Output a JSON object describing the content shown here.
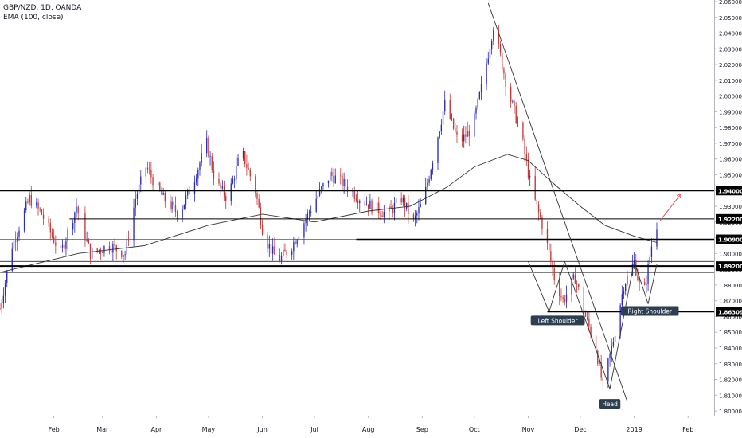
{
  "legend": {
    "symbol": "GBP/NZD, 1D, OANDA",
    "indicator": "EMA (100, close)"
  },
  "colors": {
    "up": "#2a2ab8",
    "down": "#c43838",
    "ema": "#333333",
    "level": "#000000",
    "blue_level": "#4a6cf0",
    "arrow": "#e05050",
    "badge_bg": "#000000",
    "badge_text": "#ffffff",
    "label_bg": "#2c3e50"
  },
  "chart_data": {
    "type": "candlestick",
    "y_ticks": [
      "1.80000",
      "1.81000",
      "1.82000",
      "1.83000",
      "1.84000",
      "1.85000",
      "1.86000",
      "1.87000",
      "1.88000",
      "1.89000",
      "1.90000",
      "1.91000",
      "1.92000",
      "1.93000",
      "1.94000",
      "1.95000",
      "1.96000",
      "1.97000",
      "1.98000",
      "1.99000",
      "2.00000",
      "2.01000",
      "2.02000",
      "2.03000",
      "2.04000",
      "2.05000",
      "2.06000"
    ],
    "ylim": [
      1.797,
      2.061
    ],
    "x_labels": [
      "Feb",
      "Mar",
      "Apr",
      "May",
      "Jun",
      "Jul",
      "Aug",
      "Sep",
      "Oct",
      "Nov",
      "Dec",
      "2019",
      "Feb"
    ],
    "x_label_dates": [
      "2018-02-01",
      "2018-03-01",
      "2018-04-01",
      "2018-05-01",
      "2018-06-01",
      "2018-07-01",
      "2018-08-01",
      "2018-09-01",
      "2018-10-01",
      "2018-11-01",
      "2018-12-01",
      "2019-01-01",
      "2019-02-01"
    ],
    "x_start": "2018-01-01",
    "x_end": "2019-02-16",
    "price_path": [
      [
        "2018-01-01",
        1.865
      ],
      [
        "2018-01-08",
        1.905
      ],
      [
        "2018-01-18",
        1.935
      ],
      [
        "2018-01-25",
        1.925
      ],
      [
        "2018-02-05",
        1.9
      ],
      [
        "2018-02-14",
        1.93
      ],
      [
        "2018-02-22",
        1.9
      ],
      [
        "2018-03-05",
        1.905
      ],
      [
        "2018-03-14",
        1.9
      ],
      [
        "2018-03-20",
        1.935
      ],
      [
        "2018-03-26",
        1.955
      ],
      [
        "2018-04-05",
        1.935
      ],
      [
        "2018-04-14",
        1.925
      ],
      [
        "2018-04-22",
        1.945
      ],
      [
        "2018-04-30",
        1.97
      ],
      [
        "2018-05-05",
        1.945
      ],
      [
        "2018-05-12",
        1.935
      ],
      [
        "2018-05-20",
        1.965
      ],
      [
        "2018-05-28",
        1.94
      ],
      [
        "2018-06-02",
        1.91
      ],
      [
        "2018-06-10",
        1.895
      ],
      [
        "2018-06-18",
        1.905
      ],
      [
        "2018-06-25",
        1.92
      ],
      [
        "2018-07-02",
        1.935
      ],
      [
        "2018-07-10",
        1.95
      ],
      [
        "2018-07-17",
        1.945
      ],
      [
        "2018-07-27",
        1.935
      ],
      [
        "2018-08-03",
        1.93
      ],
      [
        "2018-08-12",
        1.925
      ],
      [
        "2018-08-20",
        1.935
      ],
      [
        "2018-08-27",
        1.92
      ],
      [
        "2018-09-02",
        1.935
      ],
      [
        "2018-09-08",
        1.965
      ],
      [
        "2018-09-14",
        1.995
      ],
      [
        "2018-09-22",
        1.97
      ],
      [
        "2018-09-30",
        1.98
      ],
      [
        "2018-10-07",
        2.015
      ],
      [
        "2018-10-12",
        2.045
      ],
      [
        "2018-10-20",
        2.005
      ],
      [
        "2018-10-28",
        1.975
      ],
      [
        "2018-11-03",
        1.94
      ],
      [
        "2018-11-10",
        1.915
      ],
      [
        "2018-11-16",
        1.885
      ],
      [
        "2018-11-21",
        1.87
      ],
      [
        "2018-11-28",
        1.885
      ],
      [
        "2018-12-04",
        1.86
      ],
      [
        "2018-12-10",
        1.84
      ],
      [
        "2018-12-14",
        1.815
      ],
      [
        "2018-12-20",
        1.845
      ],
      [
        "2018-12-26",
        1.88
      ],
      [
        "2019-01-01",
        1.895
      ],
      [
        "2019-01-06",
        1.87
      ],
      [
        "2019-01-11",
        1.905
      ],
      [
        "2019-01-14",
        1.918
      ]
    ],
    "ema_path": [
      [
        "2018-01-01",
        1.888
      ],
      [
        "2018-02-15",
        1.9
      ],
      [
        "2018-03-25",
        1.905
      ],
      [
        "2018-05-01",
        1.918
      ],
      [
        "2018-06-01",
        1.925
      ],
      [
        "2018-07-01",
        1.92
      ],
      [
        "2018-08-01",
        1.927
      ],
      [
        "2018-08-25",
        1.93
      ],
      [
        "2018-09-15",
        1.942
      ],
      [
        "2018-10-01",
        1.955
      ],
      [
        "2018-10-20",
        1.963
      ],
      [
        "2018-11-01",
        1.959
      ],
      [
        "2018-11-15",
        1.945
      ],
      [
        "2018-12-01",
        1.93
      ],
      [
        "2018-12-15",
        1.918
      ],
      [
        "2019-01-01",
        1.911
      ],
      [
        "2019-01-14",
        1.907
      ]
    ],
    "levels": [
      {
        "price": 1.94,
        "label": "1.94000",
        "from": "2018-01-01",
        "width": 2
      },
      {
        "price": 1.922,
        "label": "1.92200",
        "from": "2018-02-10",
        "width": 1
      },
      {
        "price": 1.909,
        "label": "1.90900",
        "from": "2018-07-25",
        "width": 1.5
      },
      {
        "price": 1.892,
        "label": "1.89200",
        "from": "2018-01-01",
        "width": 2
      },
      {
        "price": 1.863,
        "label": "1.86309",
        "from": "2018-11-12",
        "width": 1.5
      }
    ],
    "thin_lines": [
      {
        "price": 1.909,
        "from": "2018-01-01",
        "to": "2018-07-25",
        "color": "blue_level"
      },
      {
        "price": 1.895,
        "from": "2018-01-01",
        "to": "2019-02-16",
        "color": "level"
      },
      {
        "price": 1.888,
        "from": "2018-01-01",
        "to": "2019-02-16",
        "color": "level"
      }
    ],
    "trendlines": [
      [
        [
          "2018-10-09",
          2.059
        ],
        [
          "2018-12-28",
          1.806
        ]
      ],
      [
        [
          "2018-11-01",
          1.895
        ],
        [
          "2018-11-13",
          1.863
        ]
      ],
      [
        [
          "2018-11-13",
          1.863
        ],
        [
          "2018-11-22",
          1.895
        ]
      ],
      [
        [
          "2018-11-22",
          1.895
        ],
        [
          "2018-12-18",
          1.814
        ]
      ],
      [
        [
          "2018-12-18",
          1.814
        ],
        [
          "2019-01-01",
          1.895
        ]
      ],
      [
        [
          "2019-01-01",
          1.895
        ],
        [
          "2019-01-09",
          1.868
        ]
      ],
      [
        [
          "2019-01-09",
          1.868
        ],
        [
          "2019-01-14",
          1.893
        ]
      ]
    ],
    "arrow": {
      "from": [
        "2019-01-16",
        1.921
      ],
      "to": [
        "2019-01-28",
        1.938
      ]
    },
    "annotations": [
      {
        "text": "Left Shoulder",
        "date": "2018-11-18",
        "price": 1.8575
      },
      {
        "text": "Head",
        "date": "2018-12-18",
        "price": 1.8045
      },
      {
        "text": "Right Shoulder",
        "date": "2019-01-10",
        "price": 1.8635
      }
    ]
  }
}
